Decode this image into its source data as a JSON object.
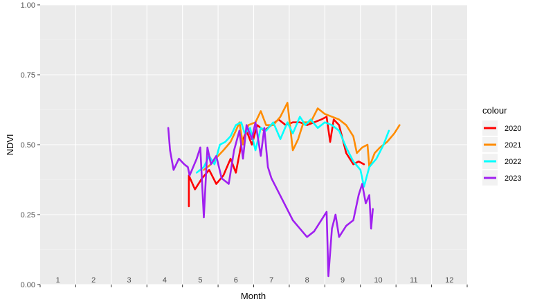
{
  "chart_data": {
    "type": "line",
    "xlabel": "Month",
    "ylabel": "NDVI",
    "ylim": [
      0,
      1
    ],
    "xlim": [
      0.5,
      12.5
    ],
    "y_ticks": [
      "0.00",
      "0.25",
      "0.50",
      "0.75",
      "1.00"
    ],
    "y_tick_values": [
      0,
      0.25,
      0.5,
      0.75,
      1.0
    ],
    "month_labels": [
      "1",
      "2",
      "3",
      "4",
      "5",
      "6",
      "7",
      "8",
      "9",
      "10",
      "11",
      "12"
    ],
    "legend_title": "colour",
    "legend_position": "right",
    "grid": true,
    "series": [
      {
        "name": "2020",
        "color": "#ff0000",
        "points": [
          [
            4.68,
            0.28
          ],
          [
            4.68,
            0.39
          ],
          [
            4.85,
            0.34
          ],
          [
            5.05,
            0.38
          ],
          [
            5.25,
            0.41
          ],
          [
            5.45,
            0.36
          ],
          [
            5.65,
            0.39
          ],
          [
            5.85,
            0.45
          ],
          [
            6.0,
            0.4
          ],
          [
            6.15,
            0.5
          ],
          [
            6.3,
            0.55
          ],
          [
            6.45,
            0.5
          ],
          [
            6.6,
            0.57
          ],
          [
            6.8,
            0.55
          ],
          [
            7.0,
            0.57
          ],
          [
            7.2,
            0.59
          ],
          [
            7.4,
            0.57
          ],
          [
            7.6,
            0.58
          ],
          [
            7.8,
            0.58
          ],
          [
            8.0,
            0.57
          ],
          [
            8.2,
            0.58
          ],
          [
            8.4,
            0.59
          ],
          [
            8.55,
            0.6
          ],
          [
            8.65,
            0.51
          ],
          [
            8.75,
            0.59
          ],
          [
            8.9,
            0.57
          ],
          [
            9.1,
            0.47
          ],
          [
            9.3,
            0.43
          ],
          [
            9.45,
            0.44
          ],
          [
            9.6,
            0.43
          ]
        ]
      },
      {
        "name": "2021",
        "color": "#ff8c00",
        "points": [
          [
            5.1,
            0.41
          ],
          [
            5.3,
            0.43
          ],
          [
            5.5,
            0.46
          ],
          [
            5.65,
            0.48
          ],
          [
            5.85,
            0.51
          ],
          [
            6.0,
            0.55
          ],
          [
            6.1,
            0.58
          ],
          [
            6.2,
            0.5
          ],
          [
            6.35,
            0.57
          ],
          [
            6.55,
            0.58
          ],
          [
            6.7,
            0.62
          ],
          [
            6.85,
            0.57
          ],
          [
            7.05,
            0.57
          ],
          [
            7.25,
            0.6
          ],
          [
            7.45,
            0.65
          ],
          [
            7.6,
            0.48
          ],
          [
            7.75,
            0.52
          ],
          [
            7.9,
            0.58
          ],
          [
            8.1,
            0.58
          ],
          [
            8.3,
            0.63
          ],
          [
            8.5,
            0.61
          ],
          [
            8.7,
            0.6
          ],
          [
            8.9,
            0.59
          ],
          [
            9.1,
            0.57
          ],
          [
            9.3,
            0.53
          ],
          [
            9.4,
            0.47
          ],
          [
            9.55,
            0.49
          ],
          [
            9.7,
            0.5
          ],
          [
            9.75,
            0.42
          ],
          [
            9.9,
            0.47
          ],
          [
            10.05,
            0.49
          ],
          [
            10.25,
            0.51
          ],
          [
            10.45,
            0.54
          ],
          [
            10.6,
            0.57
          ]
        ]
      },
      {
        "name": "2022",
        "color": "#00ffff",
        "points": [
          [
            4.9,
            0.4
          ],
          [
            5.1,
            0.42
          ],
          [
            5.25,
            0.46
          ],
          [
            5.4,
            0.43
          ],
          [
            5.55,
            0.5
          ],
          [
            5.7,
            0.51
          ],
          [
            5.85,
            0.53
          ],
          [
            6.0,
            0.57
          ],
          [
            6.15,
            0.58
          ],
          [
            6.25,
            0.54
          ],
          [
            6.4,
            0.56
          ],
          [
            6.55,
            0.48
          ],
          [
            6.7,
            0.56
          ],
          [
            6.85,
            0.55
          ],
          [
            7.05,
            0.58
          ],
          [
            7.25,
            0.52
          ],
          [
            7.45,
            0.58
          ],
          [
            7.6,
            0.54
          ],
          [
            7.8,
            0.6
          ],
          [
            7.95,
            0.57
          ],
          [
            8.1,
            0.59
          ],
          [
            8.3,
            0.56
          ],
          [
            8.5,
            0.58
          ],
          [
            8.7,
            0.57
          ],
          [
            8.9,
            0.55
          ],
          [
            9.1,
            0.49
          ],
          [
            9.3,
            0.44
          ],
          [
            9.5,
            0.41
          ],
          [
            9.6,
            0.35
          ],
          [
            9.75,
            0.42
          ],
          [
            9.95,
            0.45
          ],
          [
            10.15,
            0.5
          ],
          [
            10.3,
            0.55
          ]
        ]
      },
      {
        "name": "2023",
        "color": "#a020f0",
        "points": [
          [
            4.1,
            0.56
          ],
          [
            4.15,
            0.48
          ],
          [
            4.25,
            0.41
          ],
          [
            4.4,
            0.45
          ],
          [
            4.55,
            0.43
          ],
          [
            4.65,
            0.42
          ],
          [
            4.7,
            0.39
          ],
          [
            4.9,
            0.45
          ],
          [
            5.0,
            0.49
          ],
          [
            5.1,
            0.24
          ],
          [
            5.2,
            0.49
          ],
          [
            5.3,
            0.43
          ],
          [
            5.45,
            0.46
          ],
          [
            5.6,
            0.38
          ],
          [
            5.8,
            0.36
          ],
          [
            5.95,
            0.48
          ],
          [
            6.1,
            0.55
          ],
          [
            6.2,
            0.45
          ],
          [
            6.3,
            0.57
          ],
          [
            6.45,
            0.52
          ],
          [
            6.55,
            0.58
          ],
          [
            6.7,
            0.46
          ],
          [
            6.8,
            0.56
          ],
          [
            6.9,
            0.42
          ],
          [
            7.0,
            0.38
          ],
          [
            7.2,
            0.33
          ],
          [
            7.4,
            0.28
          ],
          [
            7.6,
            0.23
          ],
          [
            7.8,
            0.2
          ],
          [
            8.0,
            0.17
          ],
          [
            8.2,
            0.19
          ],
          [
            8.4,
            0.23
          ],
          [
            8.55,
            0.26
          ],
          [
            8.6,
            0.03
          ],
          [
            8.7,
            0.2
          ],
          [
            8.8,
            0.25
          ],
          [
            8.9,
            0.17
          ],
          [
            9.1,
            0.21
          ],
          [
            9.3,
            0.23
          ],
          [
            9.45,
            0.32
          ],
          [
            9.55,
            0.36
          ],
          [
            9.65,
            0.29
          ],
          [
            9.75,
            0.32
          ],
          [
            9.8,
            0.2
          ],
          [
            9.85,
            0.27
          ]
        ]
      }
    ]
  },
  "colors": {
    "panel_bg": "#ebebeb",
    "grid_major": "#ffffff",
    "grid_minor": "#f5f5f5",
    "tick_label": "#4d4d4d"
  }
}
